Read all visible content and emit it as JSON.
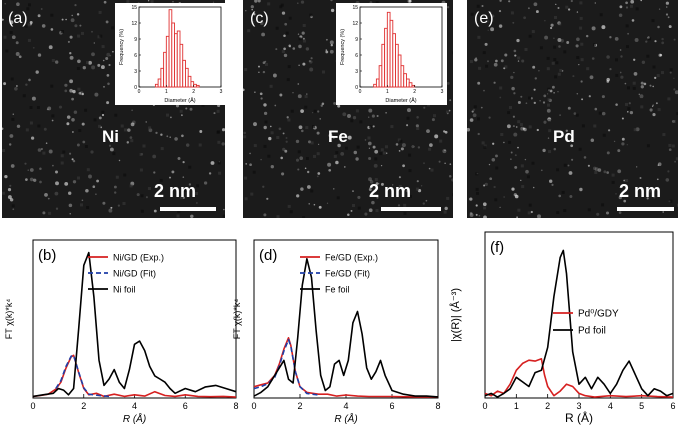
{
  "figure": {
    "panels": [
      {
        "id": "a",
        "label": "(a)",
        "element": "Ni",
        "scale": "2 nm",
        "has_inset": true
      },
      {
        "id": "c",
        "label": "(c)",
        "element": "Fe",
        "scale": "2 nm",
        "has_inset": true
      },
      {
        "id": "e",
        "label": "(e)",
        "element": "Pd",
        "scale": "2 nm",
        "has_inset": false
      }
    ]
  },
  "chart_data": [
    {
      "id": "inset-a",
      "type": "bar",
      "xlabel": "Diameter (Å)",
      "ylabel": "Frequency (%)",
      "xlim": [
        0,
        3
      ],
      "ylim": [
        0,
        15
      ],
      "xticks": [
        0,
        1,
        2,
        3
      ],
      "yticks": [
        0,
        3,
        6,
        9,
        12,
        15
      ],
      "bin_width": 0.1,
      "bins": [
        0.6,
        0.7,
        0.8,
        0.9,
        1.0,
        1.1,
        1.2,
        1.3,
        1.4,
        1.5,
        1.6,
        1.7,
        1.8,
        1.9,
        2.0,
        2.1
      ],
      "values": [
        0.5,
        1.5,
        3.5,
        6.5,
        9.5,
        14.5,
        12,
        10,
        10.5,
        8,
        5,
        3.5,
        2,
        1,
        0.5,
        0.3
      ],
      "color": "#e03030"
    },
    {
      "id": "inset-c",
      "type": "bar",
      "xlabel": "Diameter (Å)",
      "ylabel": "Frequency (%)",
      "xlim": [
        0,
        3
      ],
      "ylim": [
        0,
        15
      ],
      "xticks": [
        0,
        1,
        2,
        3
      ],
      "yticks": [
        0,
        3,
        6,
        9,
        12,
        15
      ],
      "bin_width": 0.1,
      "bins": [
        0.5,
        0.6,
        0.7,
        0.8,
        0.9,
        1.0,
        1.1,
        1.2,
        1.3,
        1.4,
        1.5,
        1.6,
        1.7,
        1.8,
        1.9
      ],
      "values": [
        0.5,
        1.5,
        4,
        8,
        11,
        14,
        12.5,
        10,
        8,
        6,
        4,
        2.5,
        1.5,
        0.8,
        0.3
      ],
      "color": "#e03030"
    },
    {
      "id": "b",
      "type": "line",
      "label": "(b)",
      "xlabel": "R (Å)",
      "ylabel": "FT χ(k)*k⁴",
      "xlim": [
        0,
        8
      ],
      "ylim": [
        0,
        5
      ],
      "xticks": [
        0,
        2,
        4,
        6,
        8
      ],
      "legend_position": "top-center",
      "series": [
        {
          "name": "Ni/GD (Exp.)",
          "color": "#d62020",
          "dash": "",
          "x": [
            0,
            0.3,
            0.6,
            0.9,
            1.1,
            1.3,
            1.5,
            1.6,
            1.8,
            2.0,
            2.2,
            2.5,
            2.8,
            3.2,
            3.6,
            4.0,
            4.4,
            4.8,
            5.2,
            5.6,
            6.0,
            6.5,
            7.0,
            7.5,
            8.0
          ],
          "y": [
            0.05,
            0.08,
            0.12,
            0.28,
            0.5,
            0.95,
            1.3,
            1.35,
            0.8,
            0.3,
            0.1,
            0.15,
            0.05,
            0.12,
            0.05,
            0.1,
            0.06,
            0.2,
            0.08,
            0.05,
            0.1,
            0.05,
            0.04,
            0.05,
            0.03
          ]
        },
        {
          "name": "Ni/GD (Fit)",
          "color": "#1f3fa8",
          "dash": "5,3",
          "x": [
            0.9,
            1.1,
            1.3,
            1.5,
            1.6,
            1.8,
            2.0,
            2.2,
            2.6,
            3.0
          ],
          "y": [
            0.3,
            0.55,
            1.0,
            1.32,
            1.35,
            0.82,
            0.32,
            0.12,
            0.08,
            0.05
          ]
        },
        {
          "name": "Ni foil",
          "color": "#000000",
          "dash": "",
          "x": [
            0,
            0.4,
            0.8,
            1.0,
            1.2,
            1.4,
            1.6,
            1.8,
            2.0,
            2.2,
            2.4,
            2.6,
            2.8,
            3.0,
            3.2,
            3.4,
            3.6,
            3.8,
            4.0,
            4.2,
            4.4,
            4.6,
            4.8,
            5.0,
            5.2,
            5.4,
            5.6,
            6.0,
            6.4,
            6.8,
            7.2,
            7.6,
            8.0
          ],
          "y": [
            0.05,
            0.1,
            0.15,
            0.3,
            0.25,
            0.1,
            0.3,
            2.2,
            4.2,
            4.6,
            3.2,
            1.2,
            0.4,
            0.6,
            0.9,
            0.5,
            0.3,
            0.9,
            1.7,
            1.8,
            1.5,
            1.0,
            0.7,
            0.6,
            0.5,
            0.3,
            0.15,
            0.3,
            0.2,
            0.35,
            0.4,
            0.3,
            0.2
          ]
        }
      ]
    },
    {
      "id": "d",
      "type": "line",
      "label": "(d)",
      "xlabel": "R (Å)",
      "ylabel": "FT χ(k)*k⁴",
      "xlim": [
        0,
        8
      ],
      "ylim": [
        0,
        4.2
      ],
      "xticks": [
        0,
        2,
        4,
        6,
        8
      ],
      "legend_position": "top-center",
      "series": [
        {
          "name": "Fe/GD (Exp.)",
          "color": "#d62020",
          "dash": "",
          "x": [
            0,
            0.3,
            0.6,
            0.9,
            1.1,
            1.3,
            1.5,
            1.6,
            1.8,
            2.0,
            2.3,
            2.8,
            3.2,
            3.6,
            4.0,
            4.5,
            5.0,
            6.0,
            7.0,
            8.0
          ],
          "y": [
            0.3,
            0.35,
            0.4,
            0.6,
            0.9,
            1.3,
            1.6,
            1.4,
            0.7,
            0.3,
            0.15,
            0.1,
            0.1,
            0.05,
            0.08,
            0.05,
            0.04,
            0.04,
            0.03,
            0.03
          ]
        },
        {
          "name": "Fe/GD (Fit)",
          "color": "#1f3fa8",
          "dash": "5,3",
          "x": [
            0,
            0.3,
            0.6,
            0.9,
            1.1,
            1.3,
            1.5,
            1.6,
            1.8,
            2.0,
            2.3,
            2.8
          ],
          "y": [
            0.25,
            0.3,
            0.38,
            0.55,
            0.85,
            1.25,
            1.55,
            1.38,
            0.7,
            0.3,
            0.12,
            0.08
          ]
        },
        {
          "name": "Fe foil",
          "color": "#000000",
          "dash": "",
          "x": [
            0,
            0.3,
            0.6,
            0.9,
            1.1,
            1.3,
            1.5,
            1.7,
            1.9,
            2.1,
            2.3,
            2.5,
            2.7,
            2.9,
            3.1,
            3.3,
            3.5,
            3.7,
            3.9,
            4.1,
            4.3,
            4.5,
            4.7,
            4.9,
            5.1,
            5.3,
            5.5,
            5.7,
            6.0,
            6.5,
            7.0,
            7.5,
            8.0
          ],
          "y": [
            0.05,
            0.15,
            0.3,
            0.6,
            0.8,
            1.0,
            0.5,
            0.4,
            1.6,
            3.0,
            3.7,
            3.2,
            1.8,
            0.6,
            0.2,
            0.3,
            0.9,
            1.0,
            0.6,
            1.0,
            2.0,
            2.3,
            1.7,
            0.8,
            0.5,
            0.7,
            1.0,
            0.6,
            0.2,
            0.1,
            0.05,
            0.05,
            0.03
          ]
        }
      ]
    },
    {
      "id": "f",
      "type": "line",
      "label": "(f)",
      "xlabel": "R (Å)",
      "ylabel": "|χ(R)| (Å⁻³)",
      "xlim": [
        0,
        6
      ],
      "ylim": [
        0,
        3.6
      ],
      "xticks": [
        0,
        1,
        2,
        3,
        4,
        5,
        6
      ],
      "legend_position": "center",
      "series": [
        {
          "name": "Pd⁰/GDY",
          "color": "#d62020",
          "dash": "",
          "x": [
            0,
            0.2,
            0.4,
            0.6,
            0.8,
            1.0,
            1.2,
            1.4,
            1.6,
            1.8,
            1.9,
            2.0,
            2.2,
            2.4,
            2.6,
            2.8,
            3.0,
            3.2,
            3.5,
            4.0,
            4.5,
            5.0,
            5.5,
            6.0
          ],
          "y": [
            0.1,
            0.05,
            0.15,
            0.1,
            0.3,
            0.6,
            0.75,
            0.82,
            0.8,
            0.85,
            0.5,
            0.25,
            0.05,
            0.15,
            0.3,
            0.25,
            0.1,
            0.05,
            0.02,
            0.05,
            0.03,
            0.05,
            0.03,
            0.02
          ]
        },
        {
          "name": "Pd foil",
          "color": "#000000",
          "dash": "",
          "x": [
            0,
            0.2,
            0.4,
            0.6,
            0.8,
            1.0,
            1.2,
            1.4,
            1.6,
            1.8,
            2.0,
            2.2,
            2.4,
            2.5,
            2.6,
            2.8,
            3.0,
            3.2,
            3.4,
            3.6,
            3.8,
            4.0,
            4.2,
            4.4,
            4.6,
            4.8,
            5.0,
            5.2,
            5.4,
            5.6,
            5.8,
            6.0
          ],
          "y": [
            0.05,
            0.1,
            0.02,
            0.1,
            0.2,
            0.45,
            0.35,
            0.25,
            0.55,
            0.6,
            1.1,
            2.2,
            3.05,
            3.2,
            2.7,
            1.0,
            0.3,
            0.45,
            0.2,
            0.45,
            0.3,
            0.1,
            0.3,
            0.6,
            0.8,
            0.5,
            0.2,
            0.05,
            0.2,
            0.15,
            0.05,
            0.1
          ]
        }
      ]
    }
  ]
}
